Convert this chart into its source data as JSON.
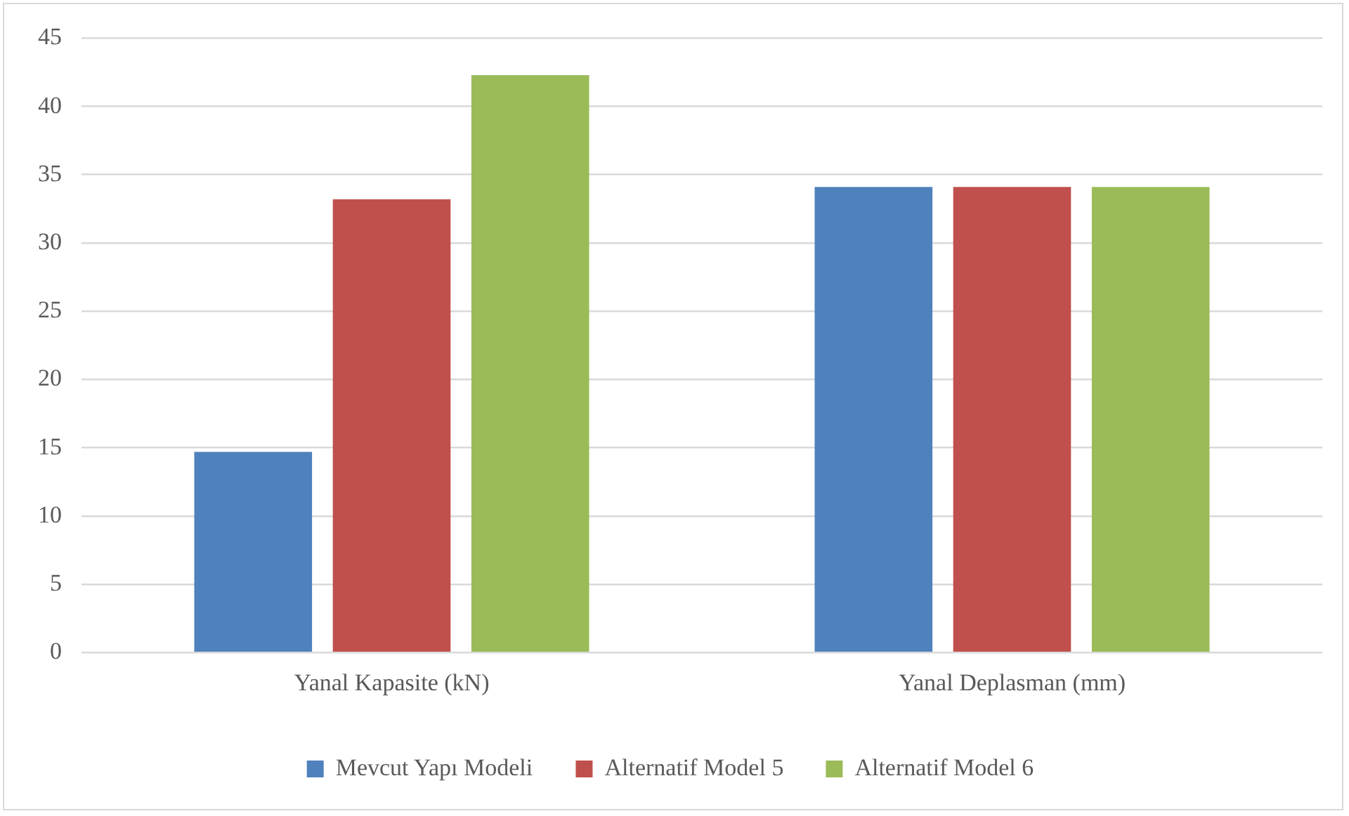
{
  "chart_data": {
    "type": "bar",
    "categories": [
      "Yanal Kapasite (kN)",
      "Yanal Deplasman (mm)"
    ],
    "series": [
      {
        "name": "Mevcut Yapı Modeli",
        "color": "#4f81bd",
        "values": [
          14.7,
          34.1
        ]
      },
      {
        "name": "Alternatif Model 5",
        "color": "#c0504d",
        "values": [
          33.2,
          34.1
        ]
      },
      {
        "name": "Alternatif Model 6",
        "color": "#9bbb59",
        "values": [
          42.3,
          34.1
        ]
      }
    ],
    "ylim": [
      0,
      45
    ],
    "yticks": [
      0,
      5,
      10,
      15,
      20,
      25,
      30,
      35,
      40,
      45
    ],
    "grid": "y",
    "legend": "bottom"
  }
}
